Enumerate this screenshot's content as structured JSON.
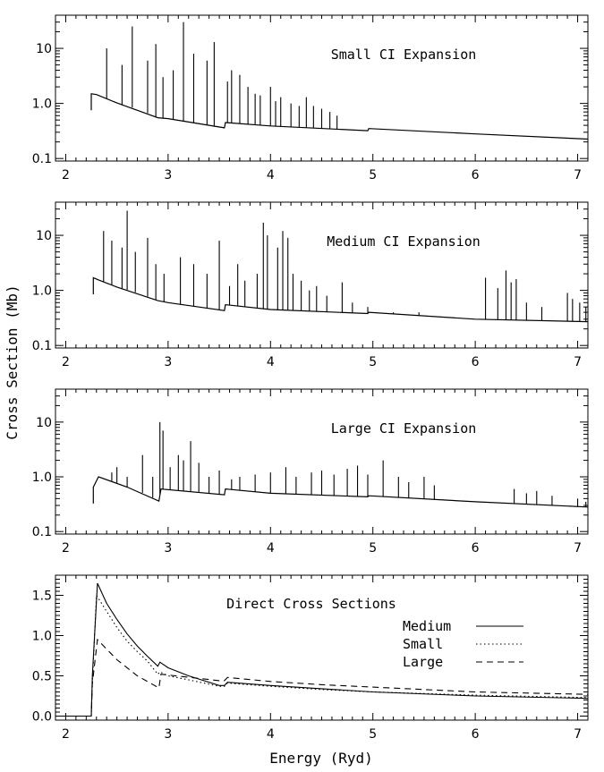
{
  "figure": {
    "ylabel": "Cross Section (Mb)",
    "xlabel": "Energy (Ryd)"
  },
  "chart_data": [
    {
      "type": "line",
      "title": "Small CI Expansion",
      "yscale": "log",
      "xlim": [
        1.9,
        7.1
      ],
      "ylim": [
        0.09,
        40
      ],
      "xticks": [
        "2",
        "3",
        "4",
        "5",
        "6",
        "7"
      ],
      "yticks": [
        "0.1",
        "1.0",
        "10"
      ],
      "onset": 2.25,
      "background": {
        "x": [
          2.25,
          2.3,
          2.5,
          2.9,
          3.0,
          3.55,
          3.56,
          4.0,
          4.95,
          4.96,
          6.0,
          7.1
        ],
        "y": [
          1.5,
          1.45,
          1.02,
          0.55,
          0.53,
          0.36,
          0.45,
          0.39,
          0.32,
          0.35,
          0.28,
          0.225
        ]
      },
      "resonances": {
        "x": [
          2.4,
          2.55,
          2.65,
          2.8,
          2.88,
          2.95,
          3.05,
          3.15,
          3.25,
          3.38,
          3.45,
          3.58,
          3.62,
          3.7,
          3.78,
          3.85,
          3.9,
          4.0,
          4.05,
          4.1,
          4.2,
          4.28,
          4.35,
          4.42,
          4.5,
          4.58,
          4.65
        ],
        "y": [
          10,
          5,
          25,
          6,
          12,
          3,
          4,
          30,
          8,
          6,
          13,
          2.5,
          4,
          3.3,
          2,
          1.5,
          1.4,
          2,
          1.1,
          1.3,
          1.0,
          0.9,
          1.3,
          0.9,
          0.8,
          0.7,
          0.6
        ]
      }
    },
    {
      "type": "line",
      "title": "Medium CI Expansion",
      "yscale": "log",
      "xlim": [
        1.9,
        7.1
      ],
      "ylim": [
        0.09,
        40
      ],
      "xticks": [
        "2",
        "3",
        "4",
        "5",
        "6",
        "7"
      ],
      "yticks": [
        "0.1",
        "1.0",
        "10"
      ],
      "onset": 2.27,
      "background": {
        "x": [
          2.27,
          2.32,
          2.5,
          2.9,
          3.0,
          3.55,
          3.56,
          4.0,
          4.95,
          4.96,
          6.0,
          7.1
        ],
        "y": [
          1.7,
          1.55,
          1.15,
          0.65,
          0.6,
          0.43,
          0.55,
          0.45,
          0.38,
          0.4,
          0.3,
          0.27
        ]
      },
      "resonances": {
        "x": [
          2.37,
          2.45,
          2.55,
          2.6,
          2.68,
          2.8,
          2.88,
          2.96,
          3.12,
          3.25,
          3.38,
          3.5,
          3.6,
          3.68,
          3.75,
          3.87,
          3.93,
          3.97,
          4.07,
          4.12,
          4.17,
          4.22,
          4.3,
          4.38,
          4.45,
          4.55,
          4.7,
          4.8,
          4.95,
          5.2,
          5.45,
          6.1,
          6.22,
          6.3,
          6.35,
          6.4,
          6.5,
          6.65,
          6.9,
          6.95,
          7.02,
          7.08
        ],
        "y": [
          12,
          8,
          6,
          28,
          5,
          9,
          3,
          2,
          4,
          3,
          2,
          8,
          1.2,
          3,
          1.5,
          2,
          17,
          10,
          6,
          12,
          9,
          2,
          1.5,
          1,
          1.2,
          0.8,
          1.4,
          0.6,
          0.5,
          0.4,
          0.4,
          1.7,
          1.1,
          2.3,
          1.4,
          1.6,
          0.6,
          0.5,
          0.9,
          0.7,
          0.6,
          0.5
        ]
      }
    },
    {
      "type": "line",
      "title": "Large CI Expansion",
      "yscale": "log",
      "xlim": [
        1.9,
        7.1
      ],
      "ylim": [
        0.09,
        40
      ],
      "xticks": [
        "2",
        "3",
        "4",
        "5",
        "6",
        "7"
      ],
      "yticks": [
        "0.1",
        "1.0",
        "10"
      ],
      "onset": 2.27,
      "background": {
        "x": [
          2.27,
          2.32,
          2.6,
          2.91,
          2.93,
          3.55,
          3.56,
          4.0,
          4.95,
          4.96,
          6.0,
          7.1
        ],
        "y": [
          0.65,
          1.0,
          0.65,
          0.36,
          0.6,
          0.47,
          0.6,
          0.5,
          0.43,
          0.45,
          0.35,
          0.28
        ]
      },
      "resonances": {
        "x": [
          2.45,
          2.5,
          2.6,
          2.75,
          2.85,
          2.92,
          2.95,
          3.02,
          3.1,
          3.15,
          3.22,
          3.3,
          3.4,
          3.5,
          3.62,
          3.7,
          3.85,
          4.0,
          4.15,
          4.25,
          4.4,
          4.5,
          4.62,
          4.75,
          4.85,
          4.95,
          5.1,
          5.25,
          5.35,
          5.5,
          5.6,
          6.38,
          6.5,
          6.6,
          6.75,
          7.0,
          7.08
        ],
        "y": [
          1.2,
          1.5,
          1.0,
          2.5,
          1.0,
          10,
          7,
          1.5,
          2.5,
          2.0,
          4.5,
          1.8,
          1.0,
          1.3,
          0.9,
          1.0,
          1.1,
          1.2,
          1.5,
          1.0,
          1.2,
          1.3,
          1.1,
          1.4,
          1.6,
          1.1,
          2.0,
          1.0,
          0.8,
          1.0,
          0.7,
          0.6,
          0.5,
          0.55,
          0.45,
          0.4,
          0.35
        ]
      }
    },
    {
      "type": "line",
      "title": "Direct Cross Sections",
      "yscale": "linear",
      "xlim": [
        1.9,
        7.1
      ],
      "ylim": [
        -0.05,
        1.75
      ],
      "xticks": [
        "2",
        "3",
        "4",
        "5",
        "6",
        "7"
      ],
      "yticks": [
        "0.0",
        "0.5",
        "1.0",
        "1.5"
      ],
      "xlabel": "Energy (Ryd)",
      "series": [
        {
          "name": "Medium",
          "style": "solid",
          "x": [
            1.9,
            2.25,
            2.26,
            2.31,
            2.4,
            2.5,
            2.6,
            2.7,
            2.8,
            2.9,
            2.92,
            3.0,
            3.2,
            3.5,
            3.55,
            3.58,
            4.0,
            4.5,
            5.0,
            6.0,
            7.1
          ],
          "y": [
            0.0,
            0.0,
            0.5,
            1.65,
            1.4,
            1.2,
            1.02,
            0.87,
            0.74,
            0.62,
            0.67,
            0.6,
            0.5,
            0.38,
            0.38,
            0.42,
            0.38,
            0.34,
            0.3,
            0.25,
            0.22
          ]
        },
        {
          "name": "Small",
          "style": "dotted",
          "x": [
            1.9,
            2.25,
            2.26,
            2.3,
            2.4,
            2.5,
            2.6,
            2.7,
            2.8,
            2.9,
            2.92,
            3.0,
            3.2,
            3.5,
            3.55,
            3.58,
            4.0,
            4.5,
            5.0,
            6.0,
            7.1
          ],
          "y": [
            0.0,
            0.0,
            0.4,
            1.5,
            1.3,
            1.1,
            0.93,
            0.8,
            0.68,
            0.52,
            0.55,
            0.5,
            0.45,
            0.37,
            0.37,
            0.41,
            0.37,
            0.33,
            0.3,
            0.26,
            0.23
          ]
        },
        {
          "name": "Large",
          "style": "dashed",
          "x": [
            1.9,
            2.25,
            2.26,
            2.31,
            2.5,
            2.7,
            2.91,
            2.93,
            3.0,
            3.5,
            3.55,
            3.58,
            4.0,
            4.5,
            5.0,
            6.0,
            7.1
          ],
          "y": [
            0.0,
            0.0,
            0.4,
            0.95,
            0.7,
            0.5,
            0.35,
            0.52,
            0.51,
            0.44,
            0.44,
            0.48,
            0.43,
            0.39,
            0.36,
            0.3,
            0.27
          ]
        }
      ]
    }
  ]
}
